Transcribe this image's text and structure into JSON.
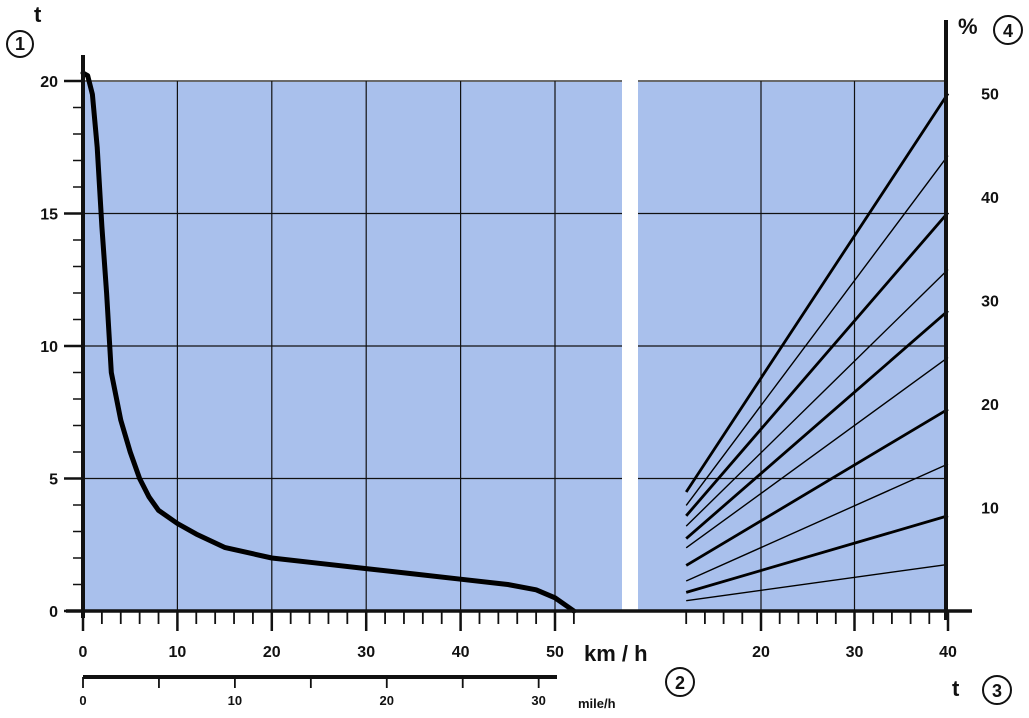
{
  "chart_data": [
    {
      "type": "line",
      "title": "",
      "y_axis_label": "t",
      "y_axis_marker": "1",
      "x_unit_label": "km / h",
      "x_unit_marker": "2",
      "secondary_x_unit_label": "mile/h",
      "ylim": [
        0,
        20
      ],
      "xlim": [
        0,
        52
      ],
      "y_ticks": [
        0,
        5,
        10,
        15,
        20
      ],
      "x_ticks": [
        0,
        10,
        20,
        30,
        40,
        50
      ],
      "secondary_x_ticks": [
        0,
        10,
        20,
        30
      ],
      "grid": true,
      "series": [
        {
          "x": [
            0,
            0.5,
            1,
            1.5,
            2,
            2.5,
            3,
            4,
            5,
            6,
            7,
            8,
            10,
            12,
            15,
            20,
            25,
            30,
            35,
            40,
            45,
            48,
            50,
            52
          ],
          "y": [
            20.3,
            20.2,
            19.5,
            17.5,
            14.5,
            12,
            9,
            7.2,
            6,
            5,
            4.3,
            3.8,
            3.3,
            2.9,
            2.4,
            2.0,
            1.8,
            1.6,
            1.4,
            1.2,
            1.0,
            0.8,
            0.5,
            0.0
          ]
        }
      ]
    },
    {
      "type": "line",
      "title": "",
      "x_axis_label": "t",
      "x_axis_marker": "3",
      "y_axis_label": "%",
      "y_axis_marker": "4",
      "xlim": [
        10,
        40
      ],
      "ylim": [
        0,
        50
      ],
      "x_ticks": [
        20,
        30,
        40
      ],
      "y_ticks": [
        10,
        20,
        30,
        40,
        50
      ],
      "grid": true,
      "series": [
        {
          "x": [
            12,
            40
          ],
          "y": [
            11.5,
            50
          ],
          "weight": "bold"
        },
        {
          "x": [
            12,
            40
          ],
          "y": [
            10.2,
            44
          ],
          "weight": "thin"
        },
        {
          "x": [
            12,
            40
          ],
          "y": [
            9.2,
            38.5
          ],
          "weight": "bold"
        },
        {
          "x": [
            12,
            40
          ],
          "y": [
            8.2,
            33
          ],
          "weight": "thin"
        },
        {
          "x": [
            12,
            40
          ],
          "y": [
            7.0,
            29
          ],
          "weight": "bold"
        },
        {
          "x": [
            12,
            40
          ],
          "y": [
            6.1,
            24.5
          ],
          "weight": "thin"
        },
        {
          "x": [
            12,
            40
          ],
          "y": [
            4.4,
            19.5
          ],
          "weight": "bold"
        },
        {
          "x": [
            12,
            40
          ],
          "y": [
            2.9,
            14.2
          ],
          "weight": "thin"
        },
        {
          "x": [
            12,
            40
          ],
          "y": [
            1.8,
            9.2
          ],
          "weight": "bold"
        },
        {
          "x": [
            12,
            40
          ],
          "y": [
            1.0,
            4.5
          ],
          "weight": "thin"
        }
      ]
    }
  ]
}
